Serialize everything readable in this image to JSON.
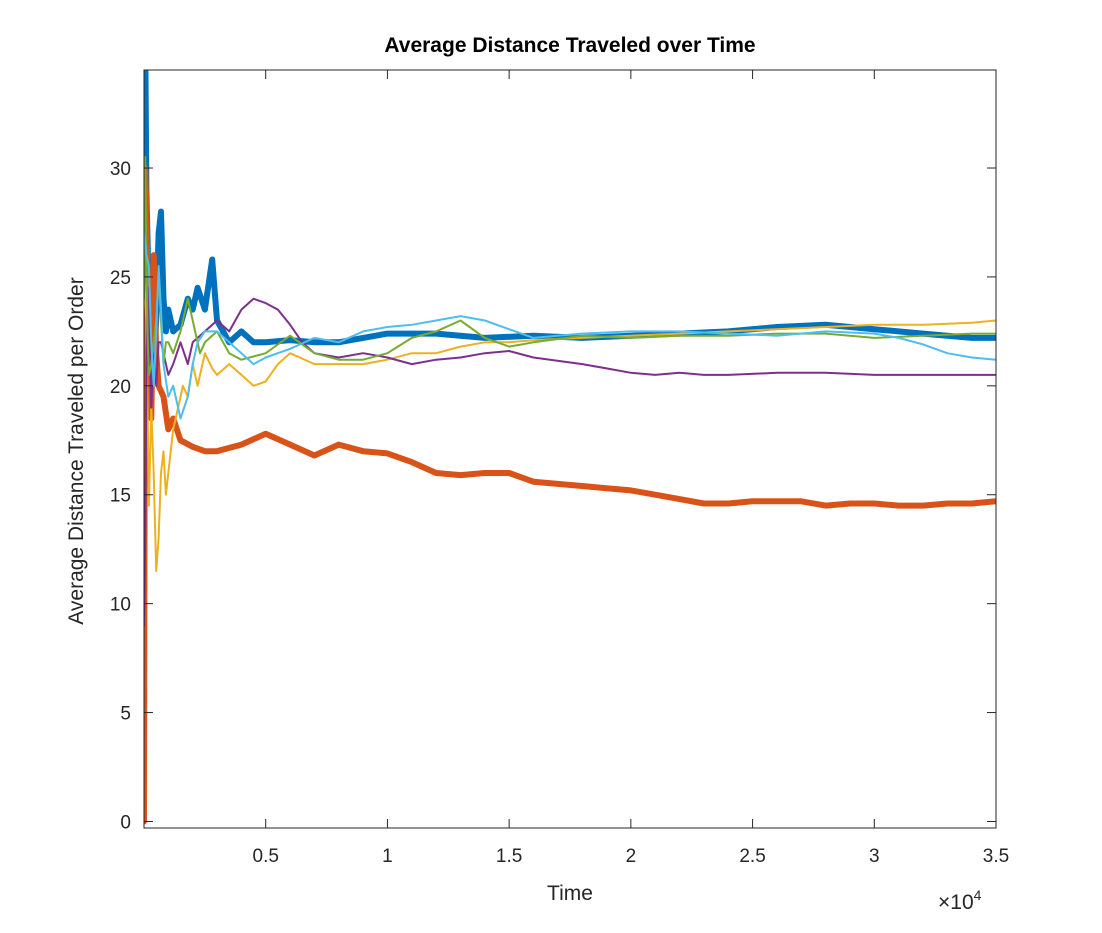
{
  "chart_data": {
    "type": "line",
    "title": "Average Distance Traveled over Time",
    "xlabel": "Time",
    "ylabel": "Average Distance Traveled per Order",
    "x_exponent_label": "×10",
    "x_exponent_power": "4",
    "xlim": [
      0,
      35000
    ],
    "ylim": [
      -0.3,
      34.5
    ],
    "xticks": [
      5000,
      10000,
      15000,
      20000,
      25000,
      30000,
      35000
    ],
    "xtick_labels": [
      "0.5",
      "1",
      "1.5",
      "2",
      "2.5",
      "3",
      "3.5"
    ],
    "yticks": [
      0,
      5,
      10,
      15,
      20,
      25,
      30
    ],
    "ytick_labels": [
      "0",
      "5",
      "10",
      "15",
      "20",
      "25",
      "30"
    ],
    "grid": false,
    "legend": "none",
    "series": [
      {
        "color": "#0072BD",
        "line_width": "thick",
        "x": [
          0,
          50,
          100,
          200,
          300,
          400,
          500,
          600,
          700,
          800,
          900,
          1000,
          1200,
          1500,
          1800,
          2000,
          2200,
          2500,
          2800,
          3000,
          3500,
          4000,
          4500,
          5000,
          6000,
          7000,
          8000,
          9000,
          10000,
          12000,
          14000,
          16000,
          18000,
          20000,
          22000,
          24000,
          26000,
          28000,
          30000,
          32000,
          34000,
          35000
        ],
        "y": [
          26,
          36,
          29,
          24,
          22.5,
          21,
          23,
          27,
          28,
          24,
          22.5,
          23.5,
          22.5,
          22.8,
          24,
          23.5,
          24.5,
          23.5,
          25.8,
          23,
          22,
          22.5,
          22,
          22,
          22.1,
          22,
          22,
          22.2,
          22.4,
          22.4,
          22.2,
          22.3,
          22.2,
          22.3,
          22.4,
          22.5,
          22.7,
          22.8,
          22.6,
          22.4,
          22.2,
          22.2
        ]
      },
      {
        "color": "#D95319",
        "line_width": "thick",
        "x": [
          0,
          50,
          100,
          200,
          300,
          400,
          500,
          600,
          800,
          1000,
          1200,
          1500,
          2000,
          2500,
          3000,
          4000,
          5000,
          6000,
          7000,
          8000,
          9000,
          10000,
          11000,
          12000,
          13000,
          14000,
          15000,
          16000,
          17000,
          18000,
          19000,
          20000,
          21000,
          22000,
          23000,
          24000,
          25000,
          26000,
          27000,
          28000,
          29000,
          30000,
          31000,
          32000,
          33000,
          34000,
          35000
        ],
        "y": [
          0,
          30,
          28,
          20,
          18.5,
          26,
          21.5,
          20,
          19.5,
          18,
          18.5,
          17.5,
          17.2,
          17,
          17,
          17.3,
          17.8,
          17.3,
          16.8,
          17.3,
          17,
          16.9,
          16.5,
          16,
          15.9,
          16,
          16,
          15.6,
          15.5,
          15.4,
          15.3,
          15.2,
          15,
          14.8,
          14.6,
          14.6,
          14.7,
          14.7,
          14.7,
          14.5,
          14.6,
          14.6,
          14.5,
          14.5,
          14.6,
          14.6,
          14.7
        ]
      },
      {
        "color": "#EDB120",
        "line_width": "thin",
        "x": [
          0,
          100,
          200,
          300,
          400,
          500,
          600,
          700,
          800,
          900,
          1000,
          1200,
          1400,
          1600,
          1800,
          2000,
          2200,
          2500,
          2800,
          3000,
          3500,
          4000,
          4500,
          5000,
          5500,
          6000,
          7000,
          8000,
          9000,
          10000,
          11000,
          12000,
          13000,
          14000,
          15000,
          16000,
          18000,
          20000,
          22000,
          24000,
          26000,
          28000,
          30000,
          32000,
          34000,
          35000
        ],
        "y": [
          25,
          23,
          14.5,
          19,
          16,
          11.5,
          13,
          16,
          17,
          15,
          16,
          18,
          19,
          20,
          19.5,
          21,
          20,
          21.5,
          20.8,
          20.5,
          21,
          20.5,
          20,
          20.2,
          21,
          21.5,
          21,
          21,
          21,
          21.2,
          21.5,
          21.5,
          21.8,
          22,
          22,
          22.1,
          22.2,
          22.3,
          22.4,
          22.5,
          22.6,
          22.7,
          22.8,
          22.8,
          22.9,
          23
        ]
      },
      {
        "color": "#7E2F8E",
        "line_width": "thin",
        "x": [
          0,
          50,
          100,
          150,
          200,
          300,
          400,
          500,
          600,
          700,
          800,
          1000,
          1200,
          1500,
          1800,
          2000,
          2500,
          3000,
          3500,
          4000,
          4500,
          5000,
          5500,
          6000,
          6500,
          7000,
          8000,
          9000,
          10000,
          11000,
          12000,
          13000,
          14000,
          15000,
          16000,
          18000,
          19000,
          20000,
          21000,
          22000,
          23000,
          24000,
          26000,
          28000,
          30000,
          32000,
          34000,
          35000
        ],
        "y": [
          9,
          13,
          20,
          24.5,
          23.5,
          19,
          21.5,
          20,
          22,
          22,
          21.5,
          20.5,
          21,
          22,
          21,
          22,
          22.5,
          23,
          22.5,
          23.5,
          24,
          23.8,
          23.5,
          22.8,
          22,
          21.5,
          21.3,
          21.5,
          21.3,
          21,
          21.2,
          21.3,
          21.5,
          21.6,
          21.3,
          21,
          20.8,
          20.6,
          20.5,
          20.6,
          20.5,
          20.5,
          20.6,
          20.6,
          20.5,
          20.5,
          20.5,
          20.5
        ]
      },
      {
        "color": "#77AC30",
        "line_width": "thin",
        "x": [
          0,
          50,
          100,
          150,
          200,
          300,
          400,
          500,
          600,
          700,
          800,
          900,
          1000,
          1200,
          1500,
          1800,
          2000,
          2300,
          2500,
          3000,
          3500,
          4000,
          5000,
          6000,
          7000,
          8000,
          9000,
          10000,
          11000,
          12000,
          13000,
          14000,
          15000,
          16000,
          18000,
          20000,
          22000,
          24000,
          26000,
          28000,
          30000,
          32000,
          34000,
          35000
        ],
        "y": [
          24,
          30.5,
          26,
          22,
          20.5,
          21,
          22,
          23,
          25,
          23,
          21,
          22,
          22,
          21.5,
          22.5,
          24,
          23,
          21.5,
          22,
          22.5,
          21.5,
          21.2,
          21.5,
          22.3,
          21.5,
          21.2,
          21.2,
          21.5,
          22.2,
          22.5,
          23,
          22.2,
          21.8,
          22,
          22.3,
          22.2,
          22.3,
          22.3,
          22.4,
          22.4,
          22.2,
          22.3,
          22.4,
          22.4
        ]
      },
      {
        "color": "#4DBEEE",
        "line_width": "thin",
        "x": [
          0,
          50,
          100,
          200,
          300,
          400,
          500,
          600,
          700,
          800,
          1000,
          1200,
          1500,
          1800,
          2000,
          2200,
          2500,
          3000,
          3500,
          4000,
          4500,
          5000,
          6000,
          7000,
          8000,
          9000,
          10000,
          11000,
          12000,
          13000,
          14000,
          15000,
          16000,
          17000,
          18000,
          20000,
          22000,
          24000,
          26000,
          28000,
          30000,
          31000,
          32000,
          33000,
          34000,
          35000
        ],
        "y": [
          27,
          26.5,
          26,
          25.5,
          22,
          20,
          22.5,
          25.5,
          23.5,
          21,
          19.5,
          20,
          18.5,
          19.5,
          21,
          22,
          22.5,
          22.5,
          22,
          21.5,
          21,
          21.3,
          21.7,
          22.2,
          22,
          22.5,
          22.7,
          22.8,
          23,
          23.2,
          23,
          22.6,
          22.2,
          22.3,
          22.4,
          22.5,
          22.5,
          22.4,
          22.3,
          22.5,
          22.4,
          22.2,
          21.9,
          21.5,
          21.3,
          21.2
        ]
      }
    ]
  }
}
